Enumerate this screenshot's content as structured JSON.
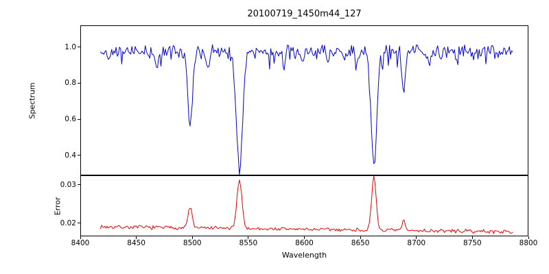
{
  "figure": {
    "title": "20100719_1450m44_127",
    "xlabel": "Wavelength",
    "background_color": "#ffffff",
    "spine_color": "#000000"
  },
  "chart_data": [
    {
      "type": "line",
      "name": "spectrum",
      "title": "20100719_1450m44_127",
      "xlabel": "Wavelength",
      "ylabel": "Spectrum",
      "legend": "none",
      "grid": false,
      "xlim": [
        8400,
        8800
      ],
      "ylim": [
        0.29,
        1.12
      ],
      "xticks": [
        8400,
        8450,
        8500,
        8550,
        8600,
        8650,
        8700,
        8750,
        8800
      ],
      "xtick_labels": [
        "8400",
        "8450",
        "8500",
        "8550",
        "8600",
        "8650",
        "8700",
        "8750",
        "8800"
      ],
      "yticks": [
        0.4,
        0.6,
        0.8,
        1.0
      ],
      "ytick_labels": [
        "0.4",
        "0.6",
        "0.8",
        "1.0"
      ],
      "line_color": "#0000dd",
      "x_start": 8418,
      "x_end": 8786,
      "x_step": 1,
      "continuum_level": 0.972,
      "noise_amplitude": 0.045,
      "noise_seed": 42,
      "absorption_lines": [
        {
          "center": 8498.0,
          "depth": 0.4,
          "sigma": 2.0,
          "min_value": 0.57
        },
        {
          "center": 8542.1,
          "depth": 0.64,
          "sigma": 2.8,
          "min_value": 0.33
        },
        {
          "center": 8662.1,
          "depth": 0.62,
          "sigma": 2.5,
          "min_value": 0.35
        },
        {
          "center": 8688.6,
          "depth": 0.23,
          "sigma": 1.4,
          "min_value": 0.75
        },
        {
          "center": 8468.0,
          "depth": 0.09,
          "sigma": 1.3,
          "min_value": 0.88
        },
        {
          "center": 8514.1,
          "depth": 0.12,
          "sigma": 1.3,
          "min_value": 0.85
        },
        {
          "center": 8582.0,
          "depth": 0.08,
          "sigma": 1.2,
          "min_value": 0.89
        },
        {
          "center": 8598.0,
          "depth": 0.07,
          "sigma": 1.2,
          "min_value": 0.9
        },
        {
          "center": 8621.0,
          "depth": 0.07,
          "sigma": 1.1,
          "min_value": 0.9
        },
        {
          "center": 8648.0,
          "depth": 0.06,
          "sigma": 1.1,
          "min_value": 0.91
        },
        {
          "center": 8712.0,
          "depth": 0.07,
          "sigma": 1.2,
          "min_value": 0.9
        },
        {
          "center": 8736.0,
          "depth": 0.06,
          "sigma": 1.1,
          "min_value": 0.91
        }
      ]
    },
    {
      "type": "line",
      "name": "error",
      "ylabel": "Error",
      "legend": "none",
      "grid": false,
      "xlim": [
        8400,
        8800
      ],
      "ylim": [
        0.0165,
        0.0325
      ],
      "xticks": [
        8400,
        8450,
        8500,
        8550,
        8600,
        8650,
        8700,
        8750,
        8800
      ],
      "yticks": [
        0.02,
        0.03
      ],
      "ytick_labels": [
        "0.02",
        "0.03"
      ],
      "line_color": "#ee0000",
      "x_start": 8418,
      "x_end": 8786,
      "x_step": 1,
      "baseline_start": 0.019,
      "baseline_end": 0.0177,
      "noise_amplitude": 0.0006,
      "noise_seed": 7,
      "peaks": [
        {
          "center": 8498.0,
          "height": 0.0055,
          "sigma": 1.8,
          "max_value": 0.024
        },
        {
          "center": 8542.1,
          "height": 0.0128,
          "sigma": 2.2,
          "max_value": 0.0315
        },
        {
          "center": 8662.1,
          "height": 0.0138,
          "sigma": 2.0,
          "max_value": 0.0322
        },
        {
          "center": 8688.6,
          "height": 0.0028,
          "sigma": 1.2,
          "max_value": 0.021
        }
      ]
    }
  ]
}
